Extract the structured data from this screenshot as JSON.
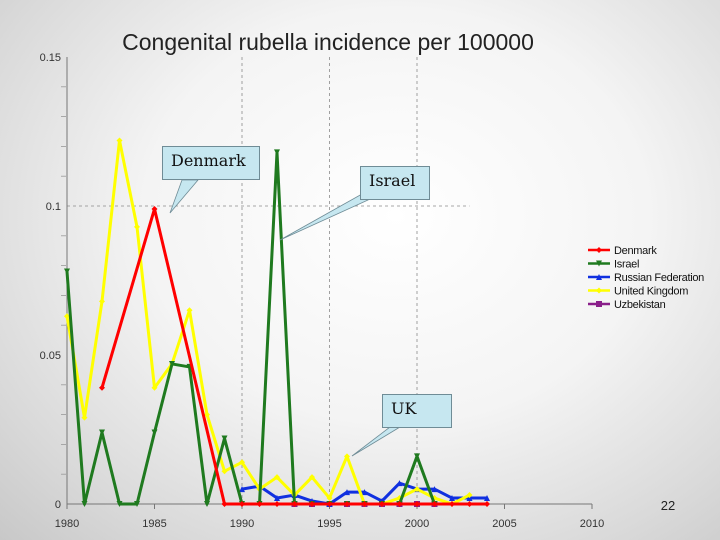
{
  "page_number": "22",
  "callouts": {
    "denmark": "Denmark",
    "israel": "Israel",
    "uk": "UK"
  },
  "chart_data": {
    "type": "line",
    "title": "Congenital rubella incidence per 100000",
    "xlabel": "",
    "ylabel": "",
    "xlim": [
      1980,
      2010
    ],
    "ylim": [
      0,
      0.15
    ],
    "x_ticks": [
      "1980",
      "1985",
      "1990",
      "1995",
      "2000",
      "2005",
      "2010"
    ],
    "y_ticks": [
      "0",
      "0.05",
      "0.1",
      "0.15"
    ],
    "y_tick_labels": [
      "0",
      "0.05",
      "0.1",
      "0.15"
    ],
    "legend_position": "right",
    "grid": "vertical dashed at 1990, 1995, 2000; horizontal dashed at 0.1",
    "series": [
      {
        "name": "Denmark",
        "color": "#ff0000",
        "marker": "diamond",
        "x": [
          1982,
          1985,
          1989,
          1990,
          1991,
          1992,
          1993,
          1994,
          1995,
          1996,
          1997,
          1998,
          1999,
          2000,
          2001,
          2002,
          2003,
          2004
        ],
        "y": [
          0.039,
          0.099,
          0,
          0,
          0,
          0,
          0,
          0,
          0,
          0,
          0,
          0,
          0,
          0,
          0,
          0,
          0,
          0
        ]
      },
      {
        "name": "Israel",
        "color": "#1f7a1f",
        "marker": "triangle-down",
        "x": [
          1980,
          1981,
          1982,
          1983,
          1984,
          1985,
          1986,
          1987,
          1988,
          1989,
          1990,
          1991,
          1992,
          1993,
          1994,
          1995,
          1996,
          1997,
          1998,
          1999,
          2000,
          2001
        ],
        "y": [
          0.078,
          0,
          0.024,
          0,
          0,
          0.024,
          0.047,
          0.046,
          0,
          0.022,
          0,
          0,
          0.118,
          0,
          0,
          0,
          0,
          0,
          0,
          0,
          0.016,
          0
        ]
      },
      {
        "name": "Russian Federation",
        "color": "#1030e0",
        "marker": "triangle-up",
        "x": [
          1990,
          1991,
          1992,
          1993,
          1994,
          1995,
          1996,
          1997,
          1998,
          1999,
          2000,
          2001,
          2002,
          2003,
          2004
        ],
        "y": [
          0.005,
          0.006,
          0.002,
          0.003,
          0.001,
          0,
          0.004,
          0.004,
          0.001,
          0.007,
          0.005,
          0.005,
          0.002,
          0.002,
          0.002
        ]
      },
      {
        "name": "United Kingdom",
        "color": "#ffff00",
        "marker": "diamond",
        "x": [
          1980,
          1981,
          1982,
          1983,
          1984,
          1985,
          1986,
          1987,
          1988,
          1989,
          1990,
          1991,
          1992,
          1993,
          1994,
          1995,
          1996,
          1997,
          1998,
          1999,
          2000,
          2001,
          2002,
          2003
        ],
        "y": [
          0.063,
          0.029,
          0.068,
          0.122,
          0.093,
          0.039,
          0.047,
          0.065,
          0.03,
          0.011,
          0.014,
          0.005,
          0.009,
          0.003,
          0.009,
          0.002,
          0.016,
          0,
          0,
          0.002,
          0.005,
          0.002,
          0,
          0.003
        ]
      },
      {
        "name": "Uzbekistan",
        "color": "#8a1f8a",
        "marker": "square",
        "x": [
          1993,
          1994,
          1995,
          1996,
          1997,
          1998,
          1999,
          2000,
          2001
        ],
        "y": [
          0,
          0,
          0,
          0,
          0,
          0,
          0,
          0,
          0
        ]
      }
    ]
  }
}
